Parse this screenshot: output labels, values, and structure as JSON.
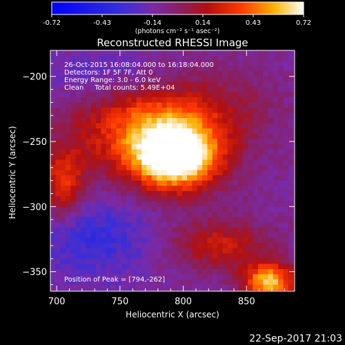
{
  "chart_data": {
    "type": "heatmap",
    "title": "Reconstructed RHESSI Image",
    "xlabel": "Heliocentric X (arcsec)",
    "ylabel": "Heliocentric Y (arcsec)",
    "xlim": [
      695,
      888
    ],
    "ylim": [
      -365,
      -180
    ],
    "xticks": [
      700,
      750,
      800,
      850
    ],
    "yticks": [
      -200,
      -250,
      -300,
      -350
    ],
    "colorbar": {
      "min": -0.72,
      "max": 0.72,
      "ticks": [
        "-0.72",
        "-0.43",
        "-0.14",
        "0.14",
        "0.43",
        "0.72"
      ],
      "unit_label": "(photons cm⁻² s⁻¹ asec⁻²)",
      "placement": "top"
    },
    "annotations": [
      "26-Oct-2015 16:08:04.000 to 16:18:04.000",
      "Detectors: 1F 5F 7F, Att 0",
      "Energy Range: 3.0 - 6.0 keV",
      "Clean     Total counts: 5.49E+04"
    ],
    "peak_label": "Position of Peak = [794,-262]",
    "peak": {
      "x": 794,
      "y": -262,
      "value": 0.72
    },
    "sources": [
      {
        "x": 794,
        "y": -262,
        "value": 0.72,
        "sx": 22,
        "sy": 17
      },
      {
        "x": 775,
        "y": -240,
        "value": 0.45,
        "sx": 45,
        "sy": 28
      },
      {
        "x": 705,
        "y": -285,
        "value": 0.3,
        "sx": 12,
        "sy": 20
      },
      {
        "x": 830,
        "y": -330,
        "value": 0.22,
        "sx": 28,
        "sy": 14
      },
      {
        "x": 868,
        "y": -358,
        "value": 0.6,
        "sx": 14,
        "sy": 10
      },
      {
        "x": 845,
        "y": -218,
        "value": -0.05,
        "sx": 30,
        "sy": 22
      },
      {
        "x": 725,
        "y": -322,
        "value": -0.35,
        "sx": 35,
        "sy": 22
      },
      {
        "x": 745,
        "y": -200,
        "value": -0.3,
        "sx": 40,
        "sy": 15
      },
      {
        "x": 720,
        "y": -230,
        "value": -0.15,
        "sx": 25,
        "sy": 25
      }
    ]
  },
  "footer": {
    "timestamp": "22-Sep-2017 21:03"
  }
}
